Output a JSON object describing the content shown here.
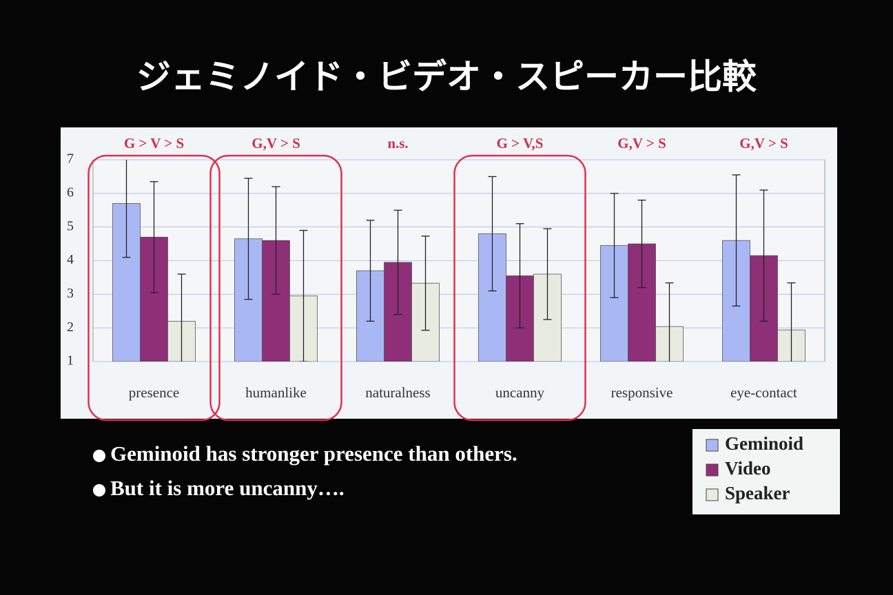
{
  "chart_data": {
    "type": "bar",
    "title": "ジェミノイド・ビデオ・スピーカー比較",
    "categories": [
      "presence",
      "humanlike",
      "naturalness",
      "uncanny",
      "responsive",
      "eye-contact"
    ],
    "annotations": [
      "G > V > S",
      "G,V > S",
      "n.s.",
      "G > V,S",
      "G,V > S",
      "G,V > S"
    ],
    "series": [
      {
        "name": "Geminoid",
        "color": "#a9b8f5",
        "values": [
          5.7,
          4.65,
          3.7,
          4.8,
          4.45,
          4.6
        ],
        "errors": [
          1.6,
          1.8,
          1.5,
          1.7,
          1.55,
          1.95
        ]
      },
      {
        "name": "Video",
        "color": "#8e2f78",
        "values": [
          4.7,
          4.6,
          3.95,
          3.55,
          4.5,
          4.15
        ],
        "errors": [
          1.65,
          1.6,
          1.55,
          1.55,
          1.3,
          1.95
        ]
      },
      {
        "name": "Speaker",
        "color": "#e8ece0",
        "values": [
          2.2,
          2.95,
          3.33,
          3.6,
          2.04,
          1.94
        ],
        "errors": [
          1.4,
          1.95,
          1.4,
          1.35,
          1.3,
          1.4
        ]
      }
    ],
    "ylim": [
      1,
      7
    ],
    "yticks": [
      1,
      2,
      3,
      4,
      5,
      6,
      7
    ],
    "grid": true,
    "highlight": [
      0,
      1,
      3
    ],
    "bullets": [
      "Geminoid has stronger presence than others.",
      "But it is more uncanny…."
    ]
  }
}
